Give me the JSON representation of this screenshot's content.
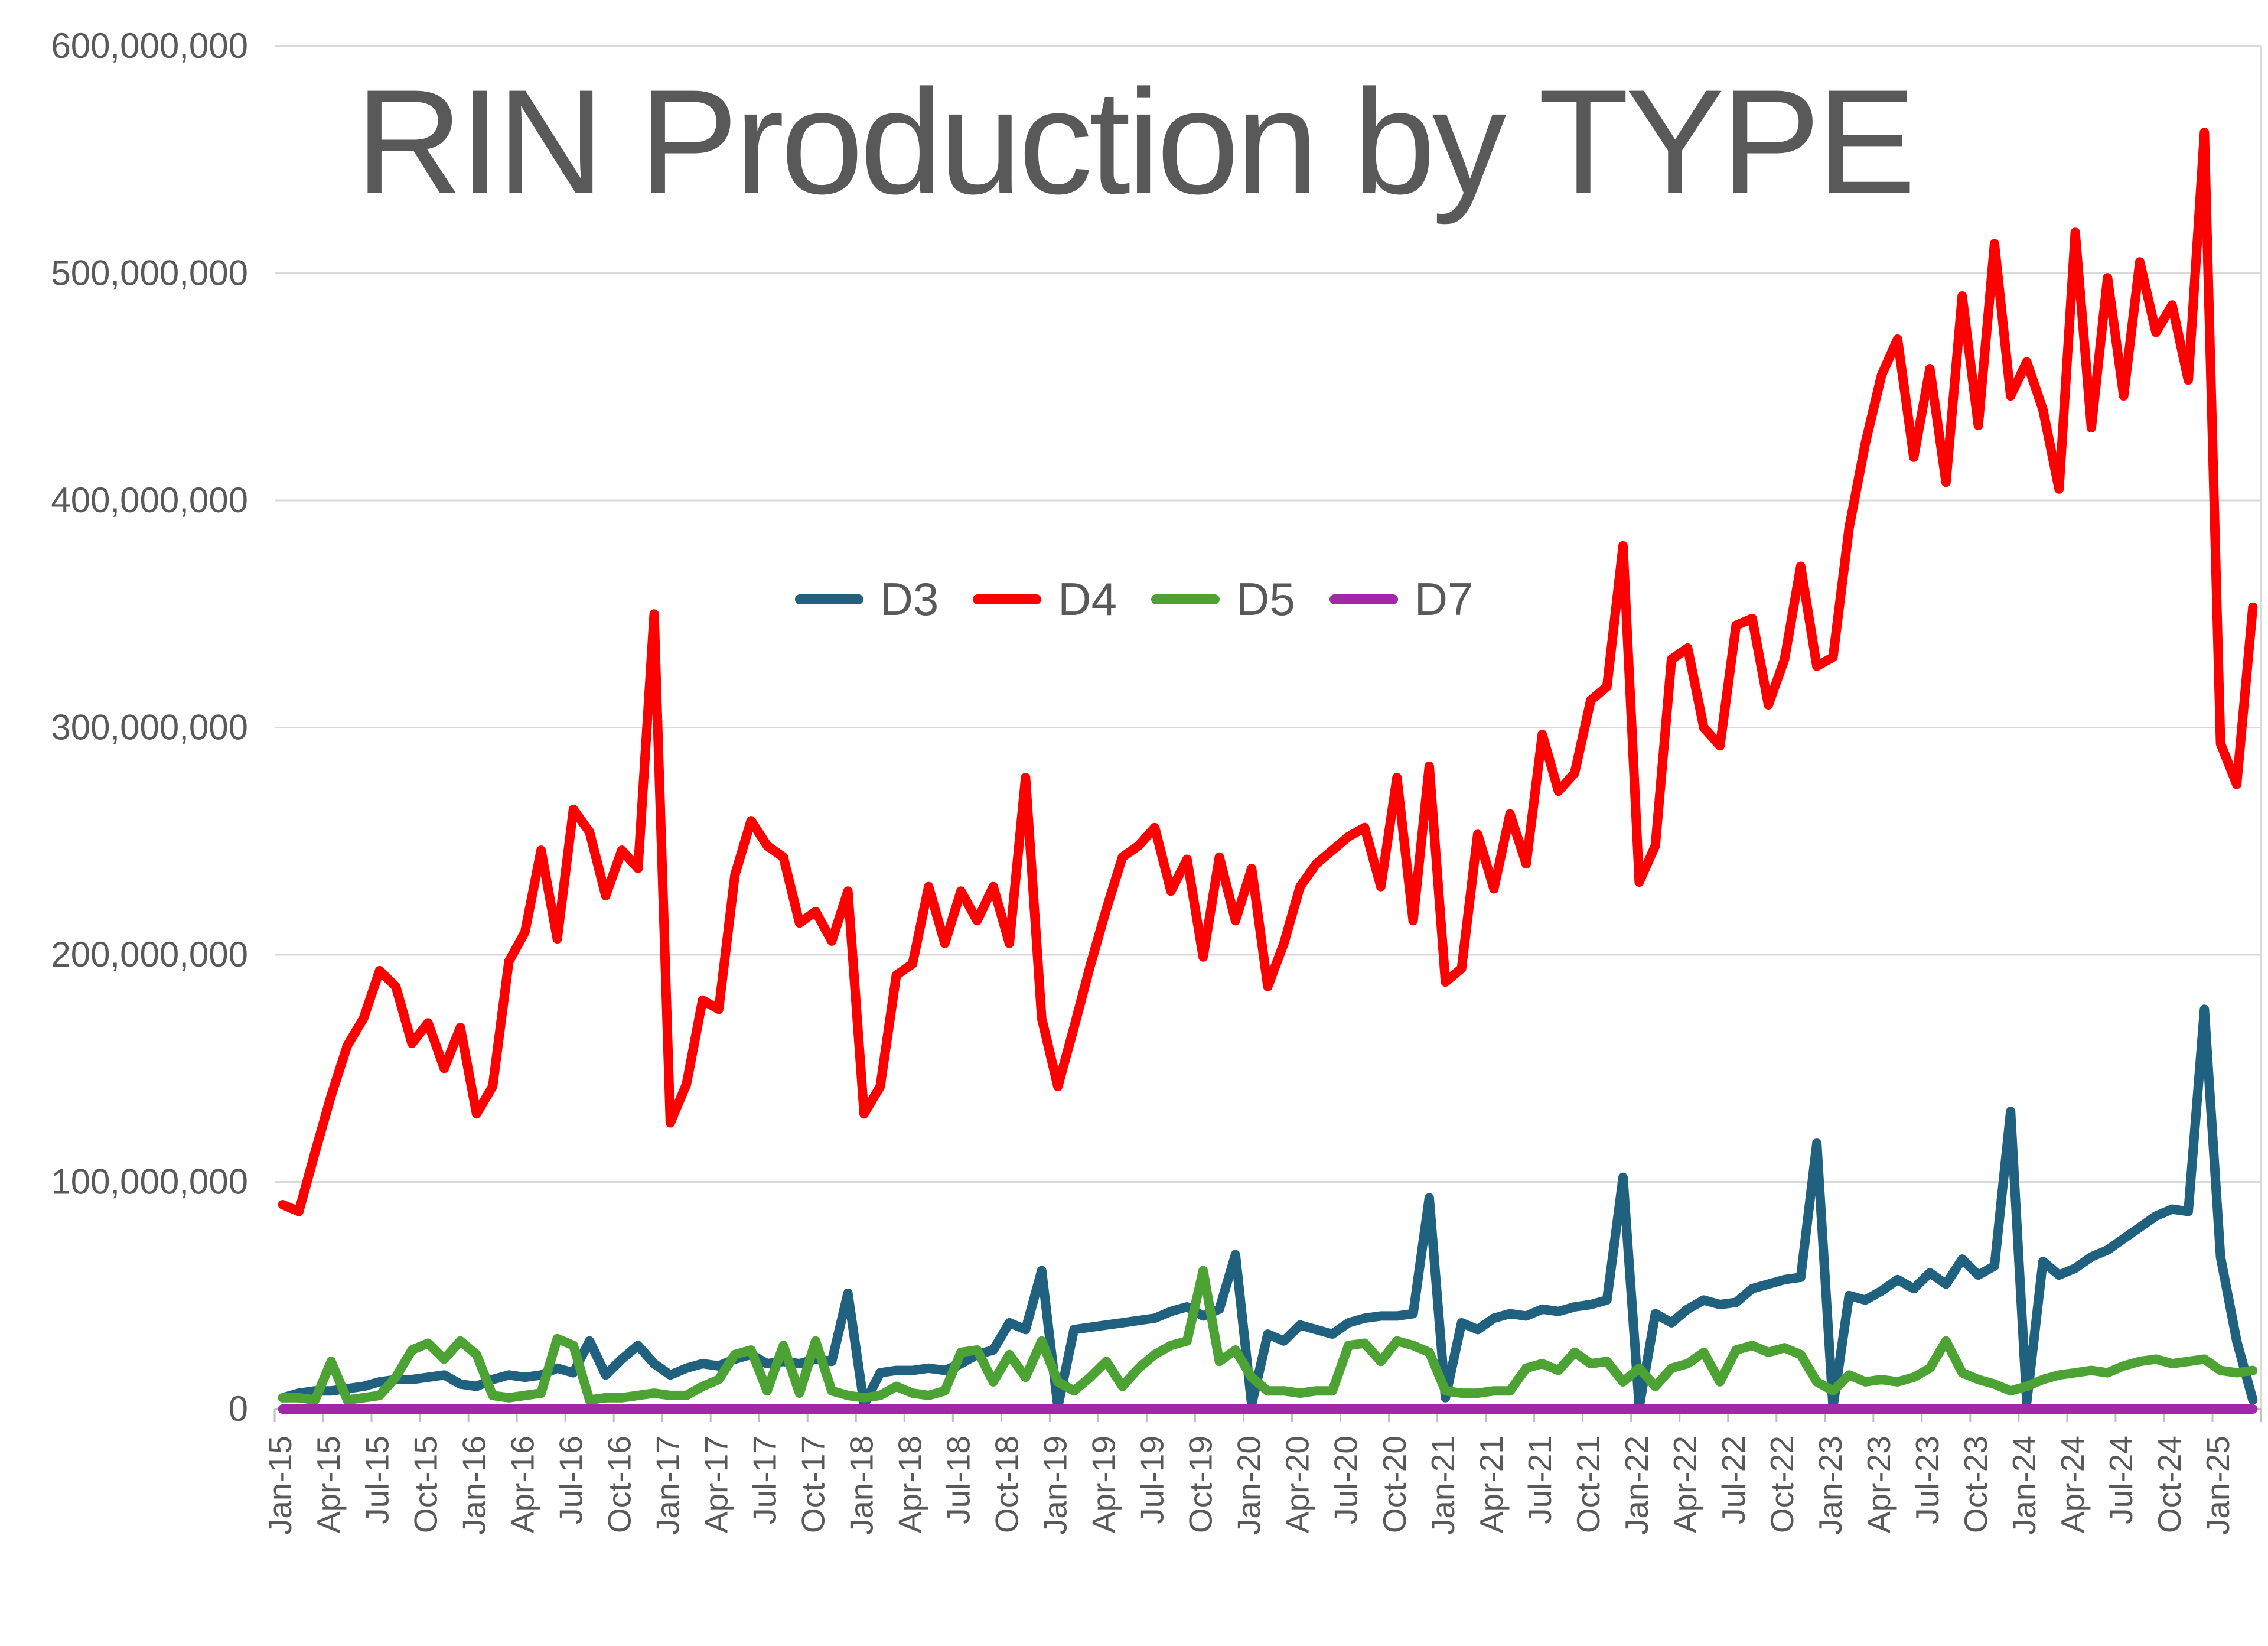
{
  "title": "RIN Production by TYPE",
  "colors": {
    "title_text": "#595959",
    "axis_text": "#595959",
    "gridline": "#d9d9d9",
    "axis_line": "#bfbfbf",
    "background": "#ffffff",
    "d3_series": "#1f617f",
    "d4_series": "#ff0000",
    "d5_series": "#4ca232",
    "d7_series": "#a328a8"
  },
  "y_axis": {
    "tick_labels": [
      "0",
      "100,000,000",
      "200,000,000",
      "300,000,000",
      "400,000,000",
      "500,000,000",
      "600,000,000"
    ],
    "tick_values_millions": [
      0,
      100,
      200,
      300,
      400,
      500,
      600
    ]
  },
  "chart_data": {
    "type": "line",
    "title": "RIN Production by TYPE",
    "unit": "RINs (values in millions)",
    "ylim_millions": [
      0,
      600
    ],
    "grid": "horizontal gridlines every 100,000,000",
    "legend_position": "inside upper-center",
    "x_tick_every": 3,
    "x": [
      "Jan-15",
      "Feb-15",
      "Mar-15",
      "Apr-15",
      "May-15",
      "Jun-15",
      "Jul-15",
      "Aug-15",
      "Sep-15",
      "Oct-15",
      "Nov-15",
      "Dec-15",
      "Jan-16",
      "Feb-16",
      "Mar-16",
      "Apr-16",
      "May-16",
      "Jun-16",
      "Jul-16",
      "Aug-16",
      "Sep-16",
      "Oct-16",
      "Nov-16",
      "Dec-16",
      "Jan-17",
      "Feb-17",
      "Mar-17",
      "Apr-17",
      "May-17",
      "Jun-17",
      "Jul-17",
      "Aug-17",
      "Sep-17",
      "Oct-17",
      "Nov-17",
      "Dec-17",
      "Jan-18",
      "Feb-18",
      "Mar-18",
      "Apr-18",
      "May-18",
      "Jun-18",
      "Jul-18",
      "Aug-18",
      "Sep-18",
      "Oct-18",
      "Nov-18",
      "Dec-18",
      "Jan-19",
      "Feb-19",
      "Mar-19",
      "Apr-19",
      "May-19",
      "Jun-19",
      "Jul-19",
      "Aug-19",
      "Sep-19",
      "Oct-19",
      "Nov-19",
      "Dec-19",
      "Jan-20",
      "Feb-20",
      "Mar-20",
      "Apr-20",
      "May-20",
      "Jun-20",
      "Jul-20",
      "Aug-20",
      "Sep-20",
      "Oct-20",
      "Nov-20",
      "Dec-20",
      "Jan-21",
      "Feb-21",
      "Mar-21",
      "Apr-21",
      "May-21",
      "Jun-21",
      "Jul-21",
      "Aug-21",
      "Sep-21",
      "Oct-21",
      "Nov-21",
      "Dec-21",
      "Jan-22",
      "Feb-22",
      "Mar-22",
      "Apr-22",
      "May-22",
      "Jun-22",
      "Jul-22",
      "Aug-22",
      "Sep-22",
      "Oct-22",
      "Nov-22",
      "Dec-22",
      "Jan-23",
      "Feb-23",
      "Mar-23",
      "Apr-23",
      "May-23",
      "Jun-23",
      "Jul-23",
      "Aug-23",
      "Sep-23",
      "Oct-23",
      "Nov-23",
      "Dec-23",
      "Jan-24",
      "Feb-24",
      "Mar-24",
      "Apr-24",
      "May-24",
      "Jun-24",
      "Jul-24",
      "Aug-24",
      "Sep-24",
      "Oct-24",
      "Nov-24",
      "Dec-24",
      "Jan-25",
      "Feb-25",
      "Mar-25"
    ],
    "series": [
      {
        "name": "D3",
        "color": "#1f617f",
        "values_millions": [
          5,
          7,
          8,
          8,
          9,
          10,
          12,
          13,
          13,
          14,
          15,
          11,
          10,
          13,
          15,
          14,
          15,
          18,
          16,
          30,
          15,
          22,
          28,
          20,
          15,
          18,
          20,
          19,
          22,
          24,
          20,
          21,
          20,
          22,
          21,
          51,
          2,
          16,
          17,
          17,
          18,
          17,
          20,
          24,
          26,
          38,
          35,
          61,
          1,
          35,
          36,
          37,
          38,
          39,
          40,
          43,
          45,
          41,
          44,
          68,
          2,
          33,
          30,
          37,
          35,
          33,
          38,
          40,
          41,
          41,
          42,
          93,
          5,
          38,
          35,
          40,
          42,
          41,
          44,
          43,
          45,
          46,
          48,
          102,
          1,
          42,
          38,
          44,
          48,
          46,
          47,
          53,
          55,
          57,
          58,
          117,
          1,
          50,
          48,
          52,
          57,
          53,
          60,
          55,
          66,
          59,
          63,
          131,
          3,
          65,
          59,
          62,
          67,
          70,
          75,
          80,
          85,
          88,
          87,
          176,
          67,
          30,
          4
        ]
      },
      {
        "name": "D4",
        "color": "#ff0000",
        "values_millions": [
          90,
          87,
          113,
          138,
          160,
          172,
          193,
          186,
          161,
          170,
          150,
          168,
          130,
          142,
          197,
          210,
          246,
          207,
          264,
          254,
          226,
          246,
          238,
          350,
          126,
          143,
          180,
          176,
          235,
          259,
          248,
          243,
          214,
          219,
          206,
          228,
          130,
          142,
          191,
          196,
          230,
          205,
          228,
          215,
          230,
          205,
          278,
          172,
          142,
          168,
          195,
          220,
          243,
          248,
          256,
          228,
          242,
          199,
          243,
          215,
          238,
          186,
          205,
          230,
          240,
          246,
          252,
          256,
          230,
          278,
          215,
          283,
          188,
          194,
          253,
          229,
          262,
          240,
          297,
          272,
          280,
          312,
          318,
          380,
          232,
          248,
          330,
          335,
          300,
          292,
          345,
          348,
          310,
          330,
          371,
          327,
          331,
          388,
          425,
          455,
          471,
          419,
          458,
          408,
          490,
          433,
          513,
          446,
          461,
          440,
          405,
          518,
          432,
          498,
          446,
          505,
          474,
          486,
          453,
          562,
          293,
          275,
          353
        ]
      },
      {
        "name": "D5",
        "color": "#4ca232",
        "values_millions": [
          5,
          5,
          4,
          21,
          4,
          5,
          6,
          14,
          26,
          29,
          22,
          30,
          24,
          6,
          5,
          6,
          7,
          31,
          28,
          4,
          5,
          5,
          6,
          7,
          6,
          6,
          10,
          13,
          24,
          26,
          8,
          28,
          7,
          30,
          8,
          6,
          5,
          6,
          10,
          7,
          6,
          8,
          25,
          26,
          12,
          24,
          14,
          30,
          12,
          8,
          14,
          21,
          10,
          18,
          24,
          28,
          30,
          61,
          21,
          26,
          14,
          8,
          8,
          7,
          8,
          8,
          28,
          29,
          21,
          30,
          28,
          25,
          8,
          7,
          7,
          8,
          8,
          18,
          20,
          17,
          25,
          20,
          21,
          12,
          18,
          10,
          18,
          20,
          25,
          12,
          26,
          28,
          25,
          27,
          24,
          12,
          8,
          15,
          12,
          13,
          12,
          14,
          18,
          30,
          16,
          13,
          11,
          8,
          10,
          13,
          15,
          16,
          17,
          16,
          19,
          21,
          22,
          20,
          21,
          22,
          17,
          16,
          17
        ]
      },
      {
        "name": "D7",
        "color": "#a328a8",
        "values_millions": [
          0,
          0,
          0,
          0,
          0,
          0,
          0,
          0,
          0,
          0,
          0,
          0,
          0,
          0,
          0,
          0,
          0,
          0,
          0,
          0,
          0,
          0,
          0,
          0,
          0,
          0,
          0,
          0,
          0,
          0,
          0,
          0,
          0,
          0,
          0,
          0,
          0,
          0,
          0,
          0,
          0,
          0,
          0,
          0,
          0,
          0,
          0,
          0,
          0,
          0,
          0,
          0,
          0,
          0,
          0,
          0,
          0,
          0,
          0,
          0,
          0,
          0,
          0,
          0,
          0,
          0,
          0,
          0,
          0,
          0,
          0,
          0,
          0,
          0,
          0,
          0,
          0,
          0,
          0,
          0,
          0,
          0,
          0,
          0,
          0,
          0,
          0,
          0,
          0,
          0,
          0,
          0,
          0,
          0,
          0,
          0,
          0,
          0,
          0,
          0,
          0,
          0,
          0,
          0,
          0,
          0,
          0,
          0,
          0,
          0,
          0,
          0,
          0,
          0,
          0,
          0,
          0,
          0,
          0,
          0,
          0,
          0,
          0
        ]
      }
    ]
  }
}
